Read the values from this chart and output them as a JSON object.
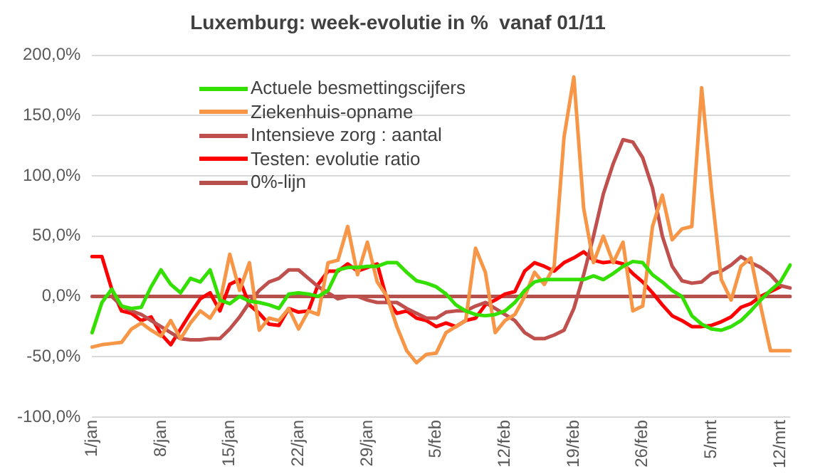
{
  "chart_data": {
    "type": "line",
    "title": "Luxemburg: week-evolutie in %  vanaf 01/11",
    "categories": [
      "1/jan",
      null,
      null,
      null,
      null,
      null,
      null,
      "8/jan",
      null,
      null,
      null,
      null,
      null,
      null,
      "15/jan",
      null,
      null,
      null,
      null,
      null,
      null,
      "22/jan",
      null,
      null,
      null,
      null,
      null,
      null,
      "29/jan",
      null,
      null,
      null,
      null,
      null,
      null,
      "5/feb",
      null,
      null,
      null,
      null,
      null,
      null,
      "12/feb",
      null,
      null,
      null,
      null,
      null,
      null,
      "19/feb",
      null,
      null,
      null,
      null,
      null,
      null,
      "26/feb",
      null,
      null,
      null,
      null,
      null,
      null,
      "5/mrt",
      null,
      null,
      null,
      null,
      null,
      null,
      "12/mrt",
      null
    ],
    "series": [
      {
        "name": "Actuele besmettingscijfers",
        "color": "#33e000",
        "values": [
          -30,
          -5,
          6,
          -8,
          -10,
          -9,
          8,
          22,
          10,
          3,
          15,
          12,
          22,
          -3,
          -6,
          0,
          -4,
          -5,
          -7,
          -10,
          2,
          3,
          2,
          0,
          5,
          22,
          24,
          24,
          25,
          25,
          28,
          28,
          20,
          13,
          11,
          8,
          2,
          -7,
          -12,
          -15,
          -16,
          -15,
          -12,
          -5,
          5,
          12,
          14,
          14,
          14,
          14,
          14,
          17,
          14,
          19,
          25,
          29,
          28,
          18,
          12,
          5,
          0,
          -16,
          -23,
          -27,
          -28,
          -25,
          -20,
          -12,
          -3,
          5,
          12,
          26
        ]
      },
      {
        "name": "Ziekenhuis-opname",
        "color": "#f79646",
        "values": [
          -42,
          -40,
          -39,
          -38,
          -27,
          -22,
          -28,
          -33,
          -20,
          -35,
          -22,
          -12,
          -18,
          -5,
          35,
          5,
          28,
          -28,
          -18,
          -20,
          -10,
          -27,
          -12,
          -15,
          28,
          30,
          58,
          18,
          45,
          12,
          0,
          -25,
          -45,
          -55,
          -48,
          -47,
          -30,
          -25,
          -20,
          40,
          20,
          -30,
          -20,
          -15,
          0,
          20,
          10,
          25,
          132,
          182,
          73,
          28,
          50,
          28,
          45,
          -12,
          -8,
          58,
          84,
          47,
          56,
          58,
          173,
          88,
          14,
          -3,
          25,
          32,
          -8,
          -45,
          -45,
          -45
        ]
      },
      {
        "name": "Intensieve zorg : aantal",
        "color": "#c0504d",
        "values": [
          null,
          null,
          0,
          -8,
          -12,
          -15,
          -20,
          -25,
          -30,
          -35,
          -36,
          -36,
          -35,
          -35,
          -27,
          -17,
          -5,
          5,
          12,
          15,
          22,
          22,
          15,
          8,
          3,
          -2,
          0,
          0,
          -3,
          -5,
          -5,
          -5,
          -10,
          -14,
          -18,
          -18,
          -13,
          -12,
          -12,
          -8,
          -5,
          -10,
          -15,
          -20,
          -30,
          -35,
          -35,
          -32,
          -28,
          -10,
          18,
          50,
          85,
          110,
          130,
          128,
          115,
          90,
          50,
          25,
          13,
          11,
          12,
          19,
          21,
          26,
          33,
          28,
          24,
          18,
          9,
          7
        ]
      },
      {
        "name": "Testen: evolutie ratio",
        "color": "#ff0000",
        "values": [
          33,
          33,
          6,
          -12,
          -14,
          -20,
          -17,
          -31,
          -40,
          -27,
          -14,
          -2,
          3,
          -12,
          10,
          14,
          -7,
          -14,
          -23,
          -24,
          -10,
          -13,
          -12,
          10,
          21,
          21,
          27,
          21,
          24,
          27,
          -3,
          -14,
          -12,
          -18,
          -20,
          -25,
          -22,
          -25,
          -20,
          -18,
          -7,
          -3,
          2,
          4,
          21,
          28,
          25,
          21,
          28,
          32,
          37,
          30,
          28,
          29,
          27,
          19,
          12,
          3,
          -7,
          -16,
          -20,
          -25,
          -25,
          -24,
          -21,
          -17,
          -9,
          -6,
          0,
          4,
          8,
          null
        ]
      },
      {
        "name": "0%-lijn",
        "color": "#b5504c",
        "values": [
          0,
          0,
          0,
          0,
          0,
          0,
          0,
          0,
          0,
          0,
          0,
          0,
          0,
          0,
          0,
          0,
          0,
          0,
          0,
          0,
          0,
          0,
          0,
          0,
          0,
          0,
          0,
          0,
          0,
          0,
          0,
          0,
          0,
          0,
          0,
          0,
          0,
          0,
          0,
          0,
          0,
          0,
          0,
          0,
          0,
          0,
          0,
          0,
          0,
          0,
          0,
          0,
          0,
          0,
          0,
          0,
          0,
          0,
          0,
          0,
          0,
          0,
          0,
          0,
          0,
          0,
          0,
          0,
          0,
          0,
          0,
          0
        ]
      }
    ],
    "ylim": [
      -100,
      200
    ],
    "yticks": [
      {
        "value": -100,
        "label": "-100,0%"
      },
      {
        "value": -50,
        "label": "-50,0%"
      },
      {
        "value": 0,
        "label": "0,0%"
      },
      {
        "value": 50,
        "label": "50,0%"
      },
      {
        "value": 100,
        "label": "100,0%"
      },
      {
        "value": 150,
        "label": "150,0%"
      },
      {
        "value": 200,
        "label": "200,0%"
      }
    ],
    "grid": "y",
    "legend": "top",
    "marker": "none",
    "line_style": "solid"
  }
}
